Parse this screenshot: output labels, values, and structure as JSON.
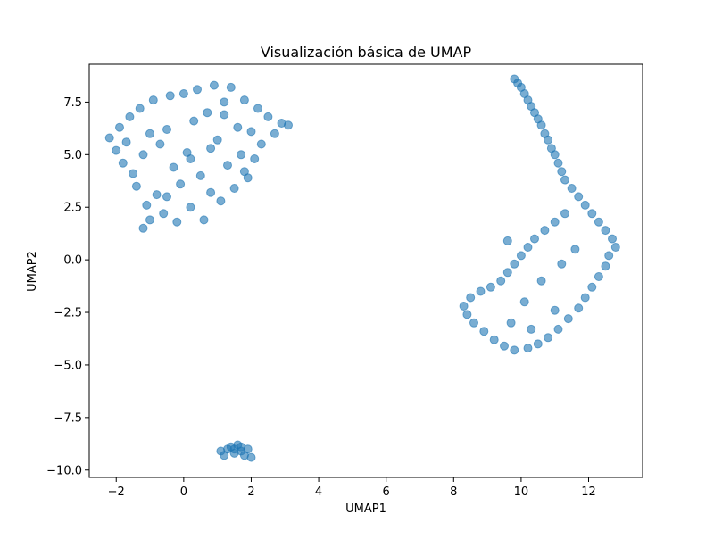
{
  "chart_data": {
    "type": "scatter",
    "title": "Visualización básica de UMAP",
    "xlabel": "UMAP1",
    "ylabel": "UMAP2",
    "xlim": [
      -2.8,
      13.6
    ],
    "ylim": [
      -10.35,
      9.3
    ],
    "xticks": [
      -2,
      0,
      2,
      4,
      6,
      8,
      10,
      12
    ],
    "xtick_labels": [
      "−2",
      "0",
      "2",
      "4",
      "6",
      "8",
      "10",
      "12"
    ],
    "yticks": [
      -10.0,
      -7.5,
      -5.0,
      -2.5,
      0.0,
      2.5,
      5.0,
      7.5
    ],
    "ytick_labels": [
      "−10.0",
      "−7.5",
      "−5.0",
      "−2.5",
      "0.0",
      "2.5",
      "5.0",
      "7.5"
    ],
    "grid": false,
    "marker_color": "#1f77b4",
    "marker_alpha": 0.6,
    "series": [
      {
        "points": [
          [
            -2.2,
            5.8
          ],
          [
            -2.0,
            5.2
          ],
          [
            -1.9,
            6.3
          ],
          [
            -1.8,
            4.6
          ],
          [
            -1.7,
            5.6
          ],
          [
            -1.6,
            6.8
          ],
          [
            -1.5,
            4.1
          ],
          [
            -1.4,
            3.5
          ],
          [
            -1.3,
            7.2
          ],
          [
            -1.2,
            5.0
          ],
          [
            -1.1,
            2.6
          ],
          [
            -1.2,
            1.5
          ],
          [
            -1.0,
            1.9
          ],
          [
            -0.9,
            7.6
          ],
          [
            -0.8,
            3.1
          ],
          [
            -0.7,
            5.5
          ],
          [
            -0.6,
            2.2
          ],
          [
            -0.5,
            6.2
          ],
          [
            -0.4,
            7.8
          ],
          [
            -0.3,
            4.4
          ],
          [
            -0.2,
            1.8
          ],
          [
            -0.1,
            3.6
          ],
          [
            0.0,
            7.9
          ],
          [
            0.1,
            5.1
          ],
          [
            0.2,
            2.5
          ],
          [
            0.3,
            6.6
          ],
          [
            0.4,
            8.1
          ],
          [
            0.5,
            4.0
          ],
          [
            0.6,
            1.9
          ],
          [
            0.7,
            7.0
          ],
          [
            0.8,
            3.2
          ],
          [
            0.9,
            8.3
          ],
          [
            1.0,
            5.7
          ],
          [
            1.1,
            2.8
          ],
          [
            1.2,
            6.9
          ],
          [
            1.3,
            4.5
          ],
          [
            1.4,
            8.2
          ],
          [
            1.5,
            3.4
          ],
          [
            1.6,
            6.3
          ],
          [
            1.7,
            5.0
          ],
          [
            1.8,
            7.6
          ],
          [
            1.9,
            3.9
          ],
          [
            2.0,
            6.1
          ],
          [
            2.1,
            4.8
          ],
          [
            2.2,
            7.2
          ],
          [
            2.3,
            5.5
          ],
          [
            2.5,
            6.8
          ],
          [
            2.7,
            6.0
          ],
          [
            2.9,
            6.5
          ],
          [
            3.1,
            6.4
          ],
          [
            -0.5,
            3.0
          ],
          [
            0.2,
            4.8
          ],
          [
            0.8,
            5.3
          ],
          [
            -1.0,
            6.0
          ],
          [
            1.2,
            7.5
          ],
          [
            1.8,
            4.2
          ]
        ]
      },
      {
        "points": [
          [
            9.8,
            8.6
          ],
          [
            9.9,
            8.4
          ],
          [
            10.0,
            8.2
          ],
          [
            10.1,
            7.9
          ],
          [
            10.2,
            7.6
          ],
          [
            10.3,
            7.3
          ],
          [
            10.4,
            7.0
          ],
          [
            10.5,
            6.7
          ],
          [
            10.6,
            6.4
          ],
          [
            10.7,
            6.0
          ],
          [
            10.8,
            5.7
          ],
          [
            10.9,
            5.3
          ],
          [
            11.0,
            5.0
          ],
          [
            11.1,
            4.6
          ],
          [
            11.2,
            4.2
          ],
          [
            11.3,
            3.8
          ],
          [
            11.5,
            3.4
          ],
          [
            11.7,
            3.0
          ],
          [
            11.9,
            2.6
          ],
          [
            12.1,
            2.2
          ],
          [
            12.3,
            1.8
          ],
          [
            12.5,
            1.4
          ],
          [
            12.7,
            1.0
          ],
          [
            12.8,
            0.6
          ],
          [
            12.6,
            0.2
          ],
          [
            12.5,
            -0.3
          ],
          [
            12.3,
            -0.8
          ],
          [
            12.1,
            -1.3
          ],
          [
            11.9,
            -1.8
          ],
          [
            11.7,
            -2.3
          ],
          [
            11.4,
            -2.8
          ],
          [
            11.1,
            -3.3
          ],
          [
            10.8,
            -3.7
          ],
          [
            10.5,
            -4.0
          ],
          [
            10.2,
            -4.2
          ],
          [
            9.8,
            -4.3
          ],
          [
            9.5,
            -4.1
          ],
          [
            9.2,
            -3.8
          ],
          [
            8.9,
            -3.4
          ],
          [
            8.6,
            -3.0
          ],
          [
            8.4,
            -2.6
          ],
          [
            8.3,
            -2.2
          ],
          [
            8.5,
            -1.8
          ],
          [
            8.8,
            -1.5
          ],
          [
            9.1,
            -1.3
          ],
          [
            9.4,
            -1.0
          ],
          [
            9.6,
            -0.6
          ],
          [
            9.8,
            -0.2
          ],
          [
            10.0,
            0.2
          ],
          [
            10.2,
            0.6
          ],
          [
            10.4,
            1.0
          ],
          [
            10.7,
            1.4
          ],
          [
            11.0,
            1.8
          ],
          [
            11.3,
            2.2
          ],
          [
            9.6,
            0.9
          ],
          [
            10.1,
            -2.0
          ],
          [
            10.6,
            -1.0
          ],
          [
            11.2,
            -0.2
          ],
          [
            11.6,
            0.5
          ],
          [
            9.7,
            -3.0
          ],
          [
            10.3,
            -3.3
          ],
          [
            11.0,
            -2.4
          ]
        ]
      },
      {
        "points": [
          [
            1.1,
            -9.1
          ],
          [
            1.2,
            -9.3
          ],
          [
            1.3,
            -9.0
          ],
          [
            1.4,
            -8.9
          ],
          [
            1.5,
            -9.2
          ],
          [
            1.6,
            -8.8
          ],
          [
            1.7,
            -9.1
          ],
          [
            1.8,
            -9.3
          ],
          [
            1.9,
            -9.0
          ],
          [
            2.0,
            -9.4
          ],
          [
            1.5,
            -9.0
          ],
          [
            1.7,
            -8.9
          ]
        ]
      }
    ]
  }
}
